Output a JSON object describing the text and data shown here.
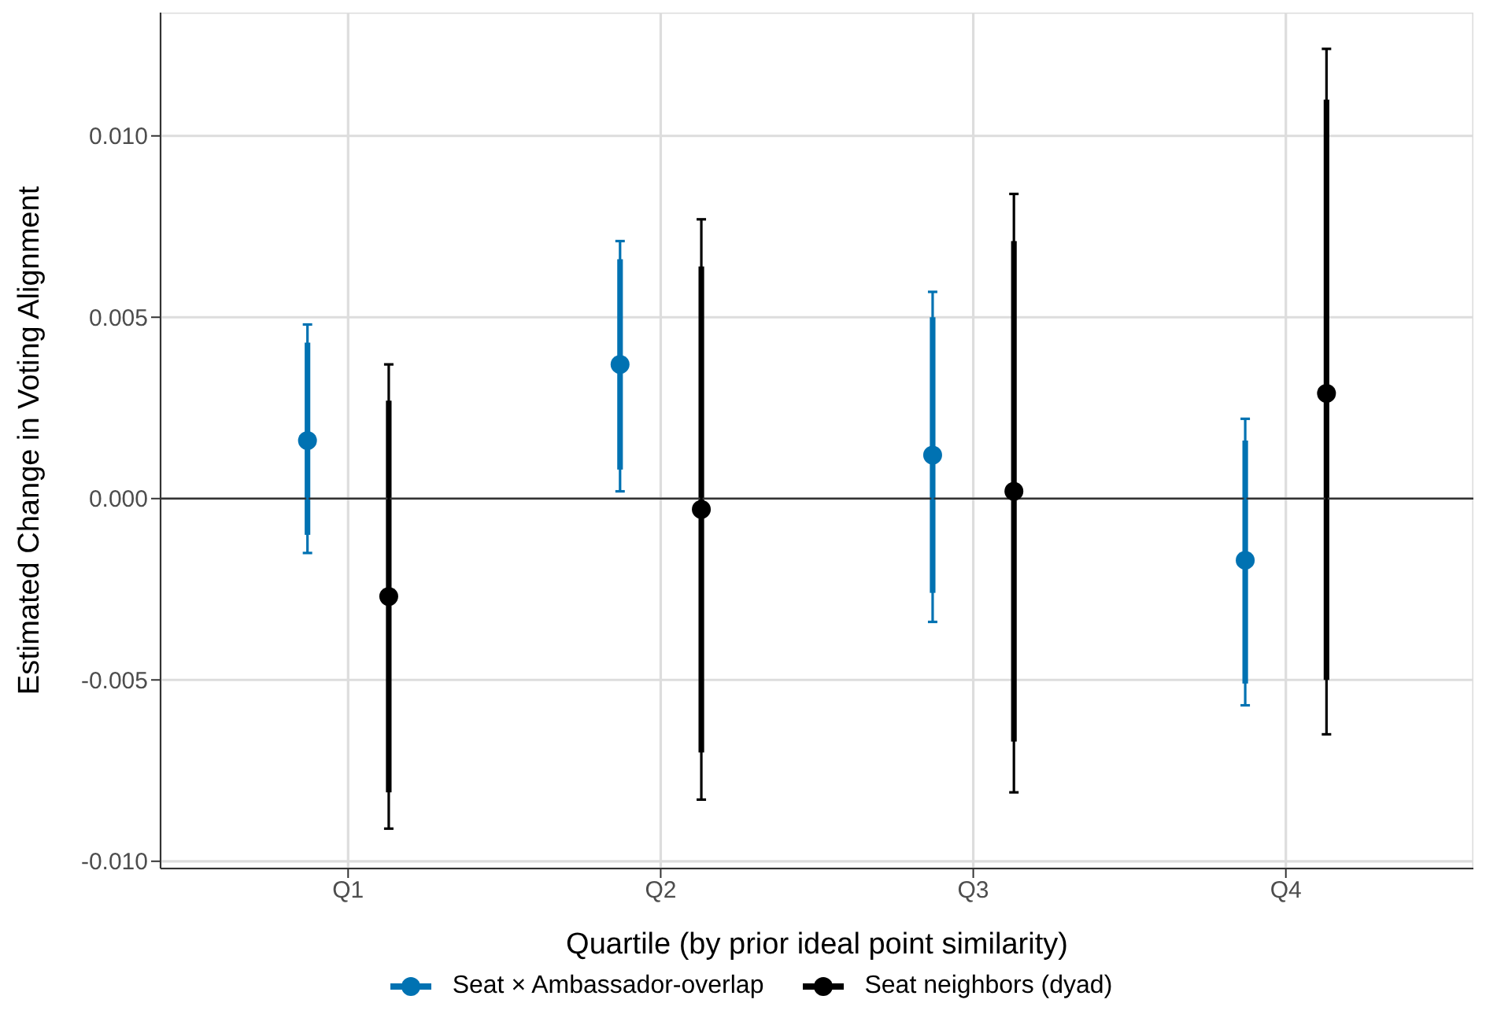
{
  "chart_data": {
    "type": "scatter",
    "categories": [
      "Q1",
      "Q2",
      "Q3",
      "Q4"
    ],
    "xlabel": "Quartile (by prior ideal point similarity)",
    "ylabel": "Estimated Change in Voting Alignment",
    "ylim": [
      -0.0102,
      0.0134
    ],
    "yticks": [
      {
        "value": -0.01,
        "label": "-0.010"
      },
      {
        "value": -0.005,
        "label": "-0.005"
      },
      {
        "value": 0,
        "label": "0.000"
      },
      {
        "value": 0.005,
        "label": "0.005"
      },
      {
        "value": 0.01,
        "label": "0.010"
      }
    ],
    "grid": true,
    "legend": "bottom",
    "marker": "circle",
    "ref_lines": [
      {
        "axis": "y",
        "value": 0,
        "color": "#333333"
      }
    ],
    "series": [
      {
        "type": "bar",
        "color": "#0072b2",
        "base": [
          -0.001,
          0.0008,
          -0.0026,
          -0.0051
        ],
        "values": [
          0.0053,
          0.0058,
          0.0076,
          0.0067
        ]
      },
      {
        "type": "bar",
        "color": "#000000",
        "base": [
          -0.0081,
          -0.007,
          -0.0067,
          -0.005
        ],
        "values": [
          0.0108,
          0.0134,
          0.0138,
          0.016
        ]
      },
      {
        "name": "Seat × Ambassador-overlap",
        "color": "#0072b2",
        "values": [
          0.0016,
          0.0037,
          0.0012,
          -0.0017
        ],
        "errors": [
          [
            -0.0015,
            0.0048
          ],
          [
            0.0002,
            0.0071
          ],
          [
            -0.0034,
            0.0057
          ],
          [
            -0.0057,
            0.0022
          ]
        ]
      },
      {
        "name": "Seat neighbors (dyad)",
        "color": "#000000",
        "values": [
          -0.0027,
          -0.0003,
          0.0002,
          0.0029
        ],
        "errors": [
          [
            -0.0091,
            0.0037
          ],
          [
            -0.0083,
            0.0077
          ],
          [
            -0.0081,
            0.0084
          ],
          [
            -0.0065,
            0.0124
          ]
        ]
      }
    ]
  }
}
